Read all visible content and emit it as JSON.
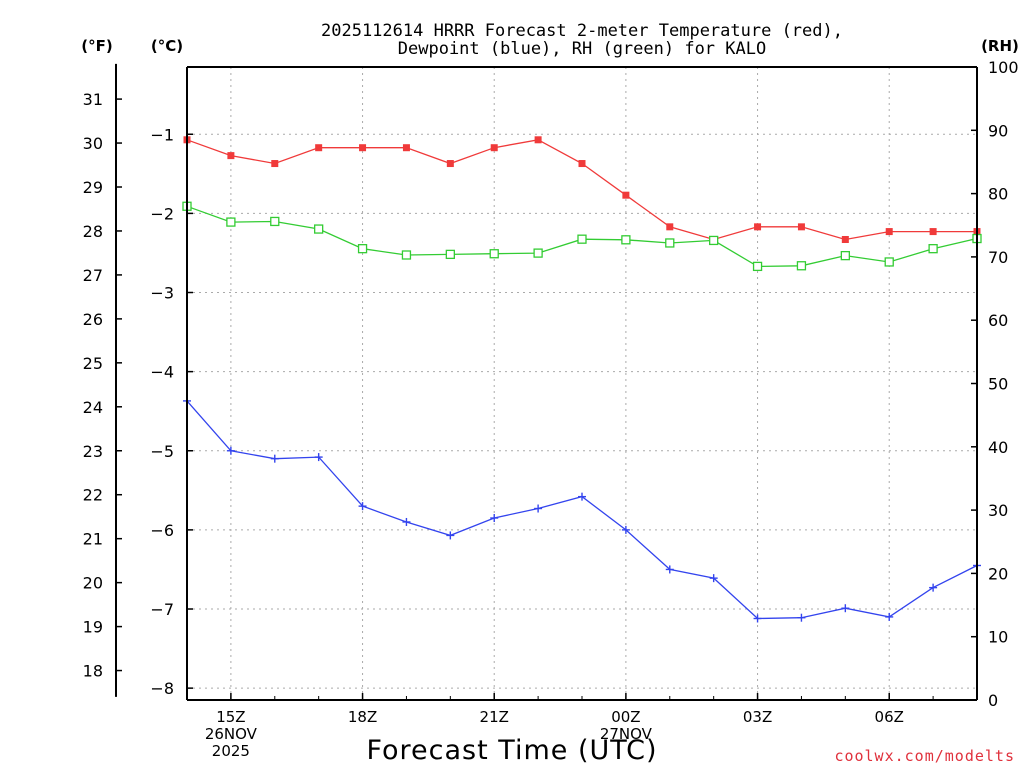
{
  "chart_data": {
    "type": "line",
    "title_line1": "2025112614 HRRR Forecast 2-meter Temperature (red),",
    "title_line2": "Dewpoint (blue), RH (green) for KALO",
    "units": {
      "f": "(°F)",
      "c": "(°C)",
      "rh": "(RH)"
    },
    "xlabel": "Forecast Time (UTC)",
    "credit": "coolwx.com/modelts",
    "credit_color": "#e0313c",
    "x_hours": [
      14,
      15,
      16,
      17,
      18,
      19,
      20,
      21,
      22,
      23,
      24,
      25,
      26,
      27,
      28,
      29,
      30,
      31,
      32
    ],
    "x_ticks": [
      {
        "hour": 15,
        "lines": [
          "15Z",
          "26NOV",
          "2025"
        ]
      },
      {
        "hour": 18,
        "lines": [
          "18Z"
        ]
      },
      {
        "hour": 21,
        "lines": [
          "21Z"
        ]
      },
      {
        "hour": 24,
        "lines": [
          "00Z",
          "27NOV"
        ]
      },
      {
        "hour": 27,
        "lines": [
          "03Z"
        ]
      },
      {
        "hour": 30,
        "lines": [
          "06Z"
        ]
      }
    ],
    "xlim": [
      14,
      32
    ],
    "celsius_axis": {
      "ylim": [
        -8.15,
        -0.15
      ],
      "ticks": [
        "-1",
        "-2",
        "-3",
        "-4",
        "-5",
        "-6",
        "-7",
        "-8"
      ]
    },
    "fahrenheit_axis": {
      "ticks": [
        "18",
        "19",
        "20",
        "21",
        "22",
        "23",
        "24",
        "25",
        "26",
        "27",
        "28",
        "29",
        "30",
        "31"
      ]
    },
    "rh_axis": {
      "ylim": [
        0,
        100
      ],
      "ticks": [
        "0",
        "10",
        "20",
        "30",
        "40",
        "50",
        "60",
        "70",
        "80",
        "90",
        "100"
      ]
    },
    "series": [
      {
        "name": "Temperature",
        "axis": "celsius",
        "color": "#f03a3a",
        "marker": "filled-square",
        "values": [
          -1.07,
          -1.27,
          -1.37,
          -1.17,
          -1.17,
          -1.17,
          -1.37,
          -1.17,
          -1.07,
          -1.37,
          -1.77,
          -2.17,
          -2.33,
          -2.17,
          -2.17,
          -2.33,
          -2.23,
          -2.23,
          -2.23
        ]
      },
      {
        "name": "Dewpoint",
        "axis": "celsius",
        "color": "#3344ee",
        "marker": "plus",
        "values": [
          -4.37,
          -5.0,
          -5.1,
          -5.08,
          -5.7,
          -5.9,
          -6.07,
          -5.85,
          -5.73,
          -5.58,
          -6.0,
          -6.5,
          -6.61,
          -7.12,
          -7.11,
          -6.99,
          -7.1,
          -6.73,
          -6.45
        ]
      },
      {
        "name": "RH",
        "axis": "rh",
        "color": "#33cc33",
        "marker": "open-square",
        "values": [
          78.0,
          75.5,
          75.6,
          74.4,
          71.3,
          70.3,
          70.4,
          70.5,
          70.6,
          72.8,
          72.7,
          72.2,
          72.6,
          68.5,
          68.6,
          70.2,
          69.2,
          71.3,
          72.9
        ]
      }
    ],
    "grid": true
  }
}
